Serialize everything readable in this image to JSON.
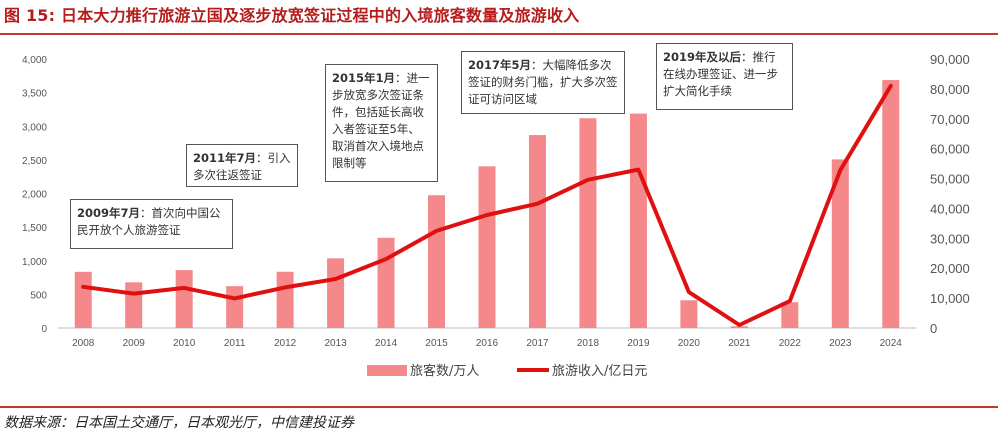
{
  "header": {
    "title": "图 15: 日本大力推行旅游立国及逐步放宽签证过程中的入境旅客数量及旅游收入"
  },
  "footer": {
    "source": "数据来源：日本国土交通厅，日本观光厅，中信建投证券"
  },
  "annotations": [
    {
      "year": "2009年7月",
      "text": "首次向中国公民开放个人旅游签证"
    },
    {
      "year": "2011年7月",
      "text": "引入多次往返签证"
    },
    {
      "year": "2015年1月",
      "text": "进一步放宽多次签证条件，包括延长高收入者签证至5年、取消首次入境地点限制等"
    },
    {
      "year": "2017年5月",
      "text": "大幅降低多次签证的财务门槛，扩大多次签证可访问区域"
    },
    {
      "year": "2019年及以后",
      "text": "推行在线办理签证、进一步扩大简化手续"
    }
  ],
  "colors": {
    "bar": "#f4888a",
    "line": "#e01010",
    "title": "#b71c1c"
  },
  "chart_data": {
    "type": "bar+line",
    "categories": [
      "2008",
      "2009",
      "2010",
      "2011",
      "2012",
      "2013",
      "2014",
      "2015",
      "2016",
      "2017",
      "2018",
      "2019",
      "2020",
      "2021",
      "2022",
      "2023",
      "2024"
    ],
    "series": [
      {
        "name": "旅客数/万人",
        "type": "bar",
        "axis": "left",
        "values": [
          835,
          679,
          861,
          622,
          836,
          1036,
          1341,
          1974,
          2404,
          2869,
          3119,
          3188,
          412,
          25,
          383,
          2507,
          3687
        ]
      },
      {
        "name": "旅游收入/亿日元",
        "type": "line",
        "axis": "right",
        "values": [
          13800,
          11500,
          13400,
          9900,
          13600,
          16400,
          23100,
          32500,
          37800,
          41600,
          49600,
          53000,
          12000,
          1000,
          9000,
          52800,
          81000
        ]
      }
    ],
    "y_left": {
      "lim": [
        0,
        4000
      ],
      "ticks": [
        0,
        500,
        1000,
        1500,
        2000,
        2500,
        3000,
        3500,
        4000
      ],
      "ticklabels": [
        "0",
        "500",
        "1,000",
        "1,500",
        "2,000",
        "2,500",
        "3,000",
        "3,500",
        "4,000"
      ]
    },
    "y_right": {
      "lim": [
        0,
        90000
      ],
      "ticks": [
        0,
        10000,
        20000,
        30000,
        40000,
        50000,
        60000,
        70000,
        80000,
        90000
      ],
      "ticklabels": [
        "0",
        "10,000",
        "20,000",
        "30,000",
        "40,000",
        "50,000",
        "60,000",
        "70,000",
        "80,000",
        "90,000"
      ]
    },
    "grid": false,
    "legend_position": "bottom"
  }
}
